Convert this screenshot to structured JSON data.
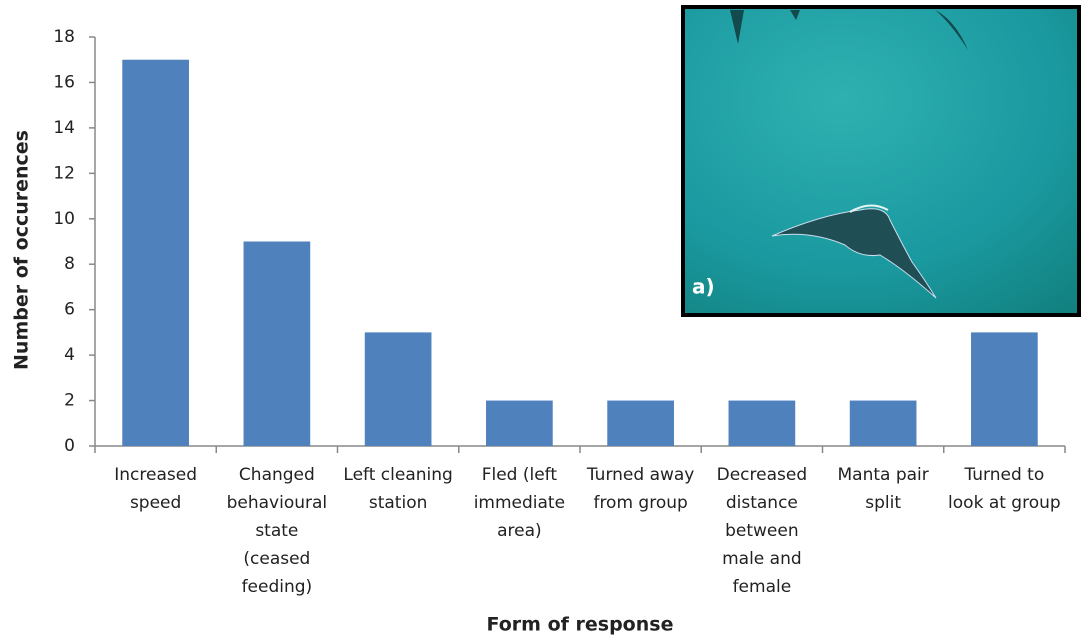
{
  "chart_data": {
    "type": "bar",
    "categories": [
      "Increased speed",
      "Changed behavioural state (ceased feeding)",
      "Left cleaning station",
      "Fled (left immediate area)",
      "Turned away from group",
      "Decreased distance between male and female",
      "Manta pair split",
      "Turned to look at group"
    ],
    "values": [
      17,
      9,
      5,
      2,
      2,
      2,
      2,
      5
    ],
    "color": "#4f81bd",
    "x_label": "Form of response",
    "y_label": "Number of occurences",
    "ylim": [
      0,
      18
    ],
    "yticks": [
      0,
      2,
      4,
      6,
      8,
      10,
      12,
      14,
      16,
      18
    ],
    "inset_label": "a)"
  }
}
